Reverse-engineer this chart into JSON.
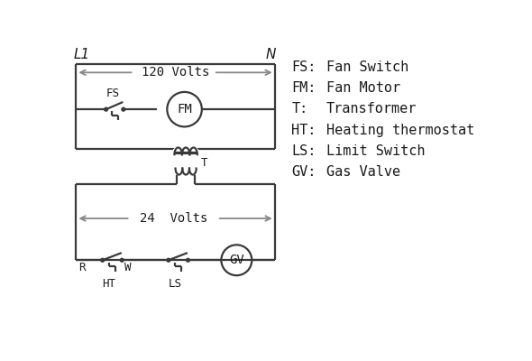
{
  "bg_color": "#ffffff",
  "line_color": "#3a3a3a",
  "arrow_color": "#888888",
  "text_color": "#1a1a1a",
  "legend": [
    [
      "FS:",
      "Fan Switch"
    ],
    [
      "FM:",
      "Fan Motor"
    ],
    [
      "T:",
      "Transformer"
    ],
    [
      "HT:",
      "Heating thermostat"
    ],
    [
      "LS:",
      "Limit Switch"
    ],
    [
      "GV:",
      "Gas Valve"
    ]
  ]
}
